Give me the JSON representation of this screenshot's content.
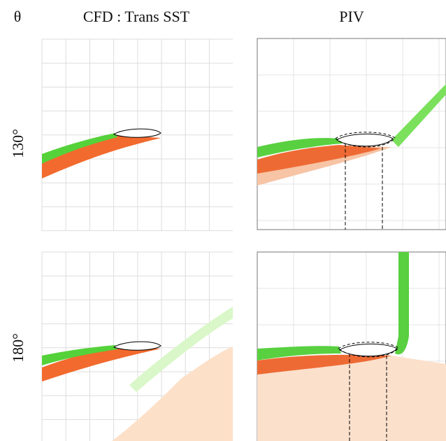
{
  "header": {
    "theta": "θ",
    "columns": [
      "CFD : Trans SST",
      "PIV"
    ]
  },
  "rows": [
    {
      "label": "130°"
    },
    {
      "label": "180°"
    }
  ]
}
